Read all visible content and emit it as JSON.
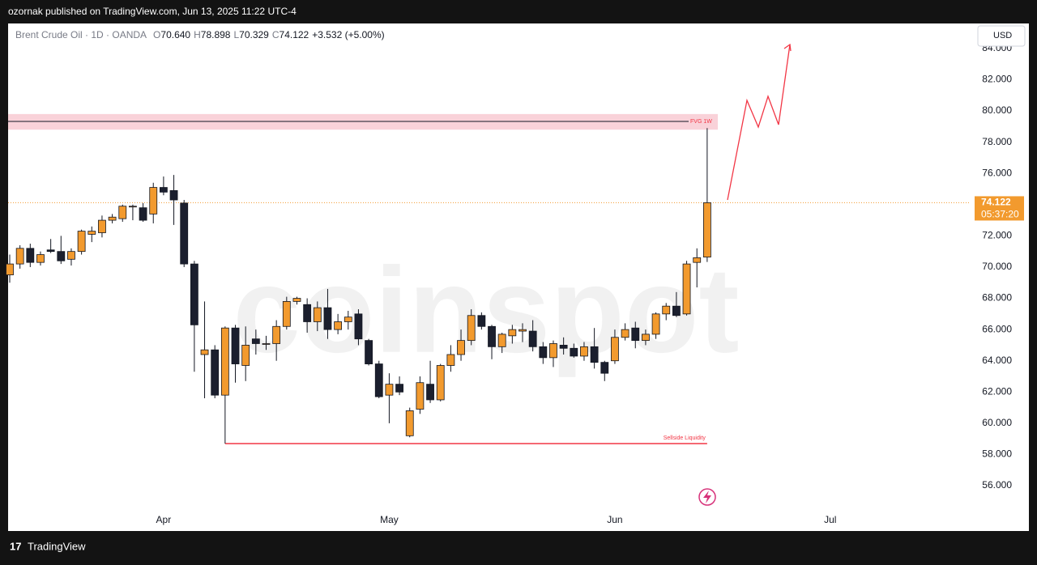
{
  "header": {
    "publisher": "ozornak published on TradingView.com, Jun 13, 2025 11:22 UTC-4"
  },
  "footer": {
    "brand": "TradingView"
  },
  "chart_data": {
    "type": "candlestick",
    "symbol": "Brent Crude Oil · 1D · OANDA",
    "ohlc_legend": [
      {
        "key": "O",
        "value": "70.640"
      },
      {
        "key": "H",
        "value": "78.898"
      },
      {
        "key": "L",
        "value": "70.329"
      },
      {
        "key": "C",
        "value": "74.122"
      }
    ],
    "change": "+3.532 (+5.00%)",
    "currency": "USD",
    "watermark": "coinspot",
    "up_color": "#f29a2e",
    "down_color": "#1b1f2e",
    "categories": [
      null,
      null,
      null,
      null,
      null,
      null,
      null,
      null,
      null,
      null,
      null,
      null,
      null,
      null,
      null,
      "Apr",
      null,
      null,
      null,
      null,
      null,
      null,
      null,
      null,
      null,
      null,
      null,
      null,
      null,
      null,
      null,
      null,
      null,
      null,
      null,
      null,
      null,
      "May",
      null,
      null,
      null,
      null,
      null,
      null,
      null,
      null,
      null,
      null,
      null,
      null,
      null,
      null,
      null,
      null,
      null,
      null,
      null,
      null,
      null,
      "Jun",
      null,
      null,
      null,
      null,
      null,
      null,
      null,
      null,
      null,
      null,
      null,
      null,
      null,
      null,
      null,
      null,
      null,
      null,
      null,
      null,
      "Jul",
      null,
      null,
      null,
      null,
      null,
      null,
      null,
      null,
      null,
      null,
      null,
      null,
      null
    ],
    "open": [
      69.5,
      70.2,
      71.2,
      70.3,
      71.1,
      71.0,
      70.5,
      71.0,
      72.1,
      72.2,
      73.0,
      73.1,
      73.9,
      73.8,
      73.4,
      75.1,
      74.9,
      74.1,
      70.2,
      64.4,
      64.7,
      61.8,
      66.1,
      63.7,
      65.4,
      65.1,
      65.1,
      66.2,
      67.8,
      67.6,
      66.5,
      67.4,
      66.0,
      66.5,
      67.0,
      65.3,
      63.8,
      61.8,
      62.5,
      59.2,
      60.9,
      62.5,
      61.5,
      63.7,
      64.4,
      65.3,
      66.9,
      66.2,
      64.9,
      65.6,
      65.9,
      65.9,
      64.9,
      64.2,
      65.0,
      64.8,
      64.3,
      64.9,
      63.9,
      64.0,
      65.5,
      66.1,
      65.3,
      65.7,
      67.0,
      67.5,
      67.0,
      70.3,
      70.64,
      null,
      null,
      null,
      null,
      null,
      null,
      null,
      null,
      null,
      null,
      null,
      null,
      null,
      null,
      null,
      null,
      null,
      null,
      null,
      null,
      null,
      null,
      null,
      null,
      null
    ],
    "high": [
      70.8,
      71.4,
      71.5,
      71.0,
      71.8,
      72.0,
      71.2,
      72.4,
      72.6,
      73.3,
      73.4,
      74.0,
      74.0,
      74.1,
      75.4,
      75.8,
      75.9,
      74.3,
      70.4,
      67.8,
      65.0,
      66.2,
      66.3,
      66.2,
      66.0,
      65.6,
      66.6,
      68.1,
      68.1,
      68.0,
      67.8,
      68.6,
      67.0,
      67.2,
      67.3,
      65.4,
      64.0,
      63.2,
      63.0,
      61.0,
      63.0,
      64.0,
      63.8,
      65.0,
      66.0,
      67.3,
      67.1,
      66.3,
      65.8,
      66.3,
      66.4,
      66.6,
      65.2,
      65.3,
      65.5,
      65.1,
      65.2,
      66.1,
      64.0,
      66.0,
      66.4,
      66.5,
      66.0,
      67.1,
      67.7,
      68.4,
      70.4,
      71.2,
      78.898,
      null,
      null,
      null,
      null,
      null,
      null,
      null,
      null,
      null,
      null,
      null,
      null,
      null,
      null,
      null,
      null,
      null,
      null,
      null,
      null,
      null,
      null,
      null,
      null,
      null
    ],
    "low": [
      69.0,
      69.9,
      70.0,
      70.1,
      70.9,
      70.2,
      70.1,
      70.8,
      71.6,
      71.9,
      72.8,
      72.9,
      73.0,
      72.9,
      72.8,
      74.6,
      72.7,
      70.0,
      63.3,
      61.6,
      61.6,
      58.7,
      62.6,
      62.7,
      64.4,
      64.7,
      64.0,
      66.0,
      67.6,
      65.8,
      65.9,
      65.4,
      65.7,
      66.0,
      65.0,
      63.7,
      61.6,
      60.0,
      61.8,
      59.1,
      60.6,
      61.3,
      61.4,
      63.3,
      64.0,
      65.0,
      66.0,
      64.1,
      64.5,
      65.1,
      65.2,
      64.6,
      63.8,
      63.6,
      64.4,
      64.2,
      64.0,
      63.5,
      62.7,
      63.8,
      65.3,
      64.8,
      65.0,
      65.4,
      66.6,
      66.8,
      66.9,
      68.7,
      70.329,
      null,
      null,
      null,
      null,
      null,
      null,
      null,
      null,
      null,
      null,
      null,
      null,
      null,
      null,
      null,
      null,
      null,
      null,
      null,
      null,
      null,
      null,
      null,
      null,
      null
    ],
    "close": [
      70.2,
      71.2,
      70.3,
      70.8,
      71.0,
      70.4,
      71.0,
      72.3,
      72.3,
      73.0,
      73.2,
      73.9,
      73.9,
      73.0,
      75.1,
      74.8,
      74.3,
      70.2,
      66.3,
      64.7,
      61.8,
      66.1,
      63.8,
      65.0,
      65.1,
      65.1,
      66.2,
      67.8,
      68.0,
      66.5,
      67.4,
      66.0,
      66.5,
      66.8,
      65.4,
      63.8,
      61.7,
      62.5,
      62.0,
      60.8,
      62.6,
      61.5,
      63.7,
      64.4,
      65.3,
      66.9,
      66.2,
      64.9,
      65.7,
      66.0,
      66.0,
      64.9,
      64.2,
      65.1,
      64.8,
      64.3,
      64.9,
      63.9,
      63.2,
      65.5,
      66.0,
      65.3,
      65.7,
      67.0,
      67.5,
      66.9,
      70.2,
      70.6,
      74.122,
      null,
      null,
      null,
      null,
      null,
      null,
      null,
      null,
      null,
      null,
      null,
      null,
      null,
      null,
      null,
      null,
      null,
      null,
      null,
      null,
      null,
      null,
      null,
      null,
      null
    ],
    "ylim": [
      53.1,
      85.6
    ],
    "yticks": [
      {
        "value": 56,
        "label": "56.000"
      },
      {
        "value": 58,
        "label": "58.000"
      },
      {
        "value": 60,
        "label": "60.000"
      },
      {
        "value": 62,
        "label": "62.000"
      },
      {
        "value": 64,
        "label": "64.000"
      },
      {
        "value": 66,
        "label": "66.000"
      },
      {
        "value": 68,
        "label": "68.000"
      },
      {
        "value": 70,
        "label": "70.000"
      },
      {
        "value": 72,
        "label": "72.000"
      },
      {
        "value": 74,
        "label": "74.000"
      },
      {
        "value": 76,
        "label": "76.000"
      },
      {
        "value": 78,
        "label": "78.000"
      },
      {
        "value": 80,
        "label": "80.000"
      },
      {
        "value": 82,
        "label": "82.000"
      },
      {
        "value": 84,
        "label": "84.000"
      }
    ],
    "grid": false,
    "last_price": {
      "value": 74.122,
      "label": "74.122",
      "countdown": "05:37:20"
    },
    "fvg": {
      "label": "FVG 1W",
      "low": 78.8,
      "high": 79.8,
      "line": 79.33
    },
    "sellside": {
      "label": "Sellside Liquidity",
      "value": 58.7
    }
  }
}
